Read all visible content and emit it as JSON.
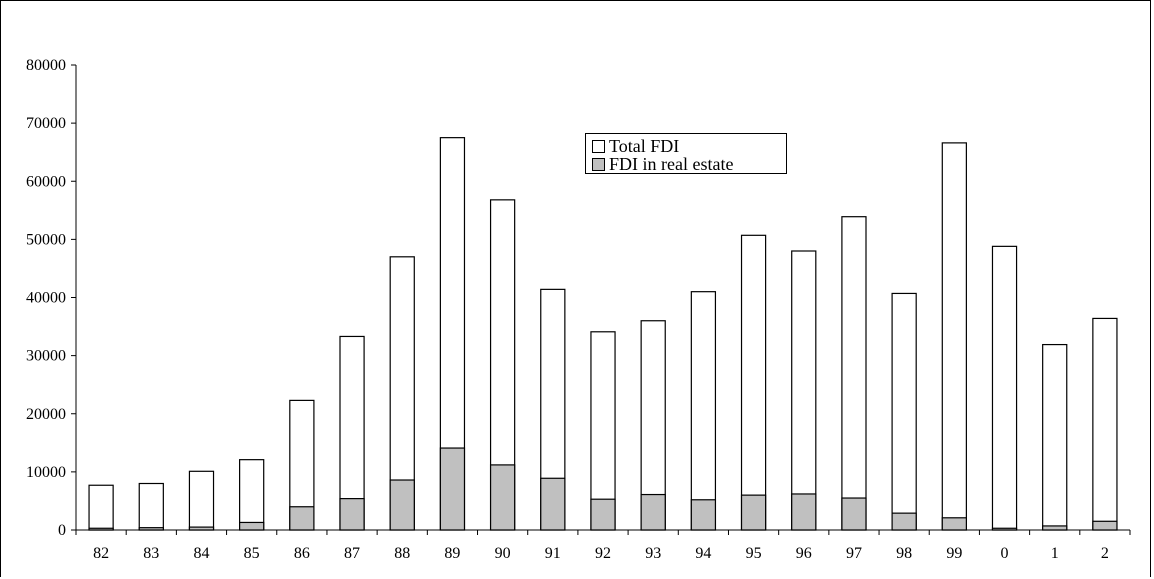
{
  "chart_data": {
    "type": "bar",
    "stacked": "overlay",
    "categories": [
      "82",
      "83",
      "84",
      "85",
      "86",
      "87",
      "88",
      "89",
      "90",
      "91",
      "92",
      "93",
      "94",
      "95",
      "96",
      "97",
      "98",
      "99",
      "0",
      "1",
      "2"
    ],
    "series": [
      {
        "name": "Total FDI",
        "color": "#ffffff",
        "values": [
          7700,
          8000,
          10100,
          12100,
          22300,
          33300,
          47000,
          67500,
          56800,
          41400,
          34100,
          36000,
          41000,
          50700,
          48000,
          53900,
          40700,
          66600,
          48800,
          31900,
          36400
        ]
      },
      {
        "name": "FDI in real estate",
        "color": "#c0c0c0",
        "values": [
          300,
          400,
          500,
          1300,
          4000,
          5400,
          8600,
          14100,
          11200,
          8900,
          5300,
          6100,
          5200,
          6000,
          6200,
          5500,
          2900,
          2100,
          300,
          700,
          1500
        ]
      }
    ],
    "yticks": [
      "0",
      "10000",
      "20000",
      "30000",
      "40000",
      "50000",
      "60000",
      "70000",
      "80000"
    ],
    "ylim": [
      0,
      80000
    ],
    "legend_position": "top-center"
  }
}
